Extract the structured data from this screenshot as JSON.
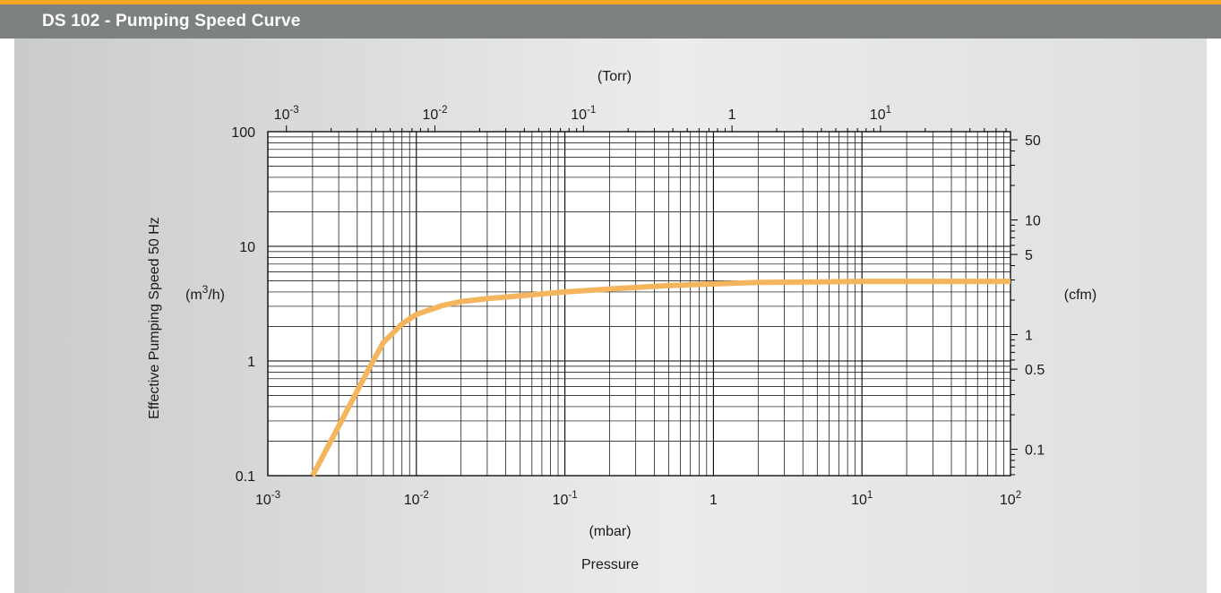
{
  "header": {
    "title": "DS 102 - Pumping Speed Curve",
    "accent_color": "#f6a623",
    "bar_color": "#7d8182"
  },
  "chart_data": {
    "type": "line",
    "title": "",
    "x_axis": {
      "label": "Pressure",
      "unit": "(mbar)",
      "scale": "log",
      "range": [
        0.001,
        100
      ],
      "ticks": [
        "10^-3",
        "10^-2",
        "10^-1",
        "1",
        "10^1",
        "10^2"
      ]
    },
    "x2_axis": {
      "unit": "(Torr)",
      "scale": "log",
      "ticks": [
        "10^-3",
        "10^-2",
        "10^-1",
        "1",
        "10^1"
      ]
    },
    "y_axis": {
      "label": "Effective Pumping Speed  50 Hz",
      "unit": "(m3/h)",
      "scale": "log",
      "range": [
        0.1,
        100
      ],
      "ticks": [
        "0.1",
        "1",
        "10",
        "100"
      ]
    },
    "y2_axis": {
      "unit": "(cfm)",
      "ticks": [
        "50",
        "10",
        "5",
        "1",
        "0.5",
        "0.1"
      ]
    },
    "grid": true,
    "series": [
      {
        "color": "#f5b55d",
        "x": [
          0.002,
          0.003,
          0.004,
          0.005,
          0.006,
          0.008,
          0.01,
          0.015,
          0.02,
          0.03,
          0.05,
          0.1,
          0.2,
          0.5,
          1,
          2,
          5,
          10,
          20,
          50,
          100
        ],
        "y": [
          0.1,
          0.27,
          0.55,
          0.95,
          1.45,
          2.1,
          2.55,
          3.05,
          3.3,
          3.5,
          3.7,
          4.0,
          4.25,
          4.55,
          4.7,
          4.85,
          4.9,
          4.95,
          4.95,
          4.95,
          4.95
        ]
      }
    ]
  }
}
